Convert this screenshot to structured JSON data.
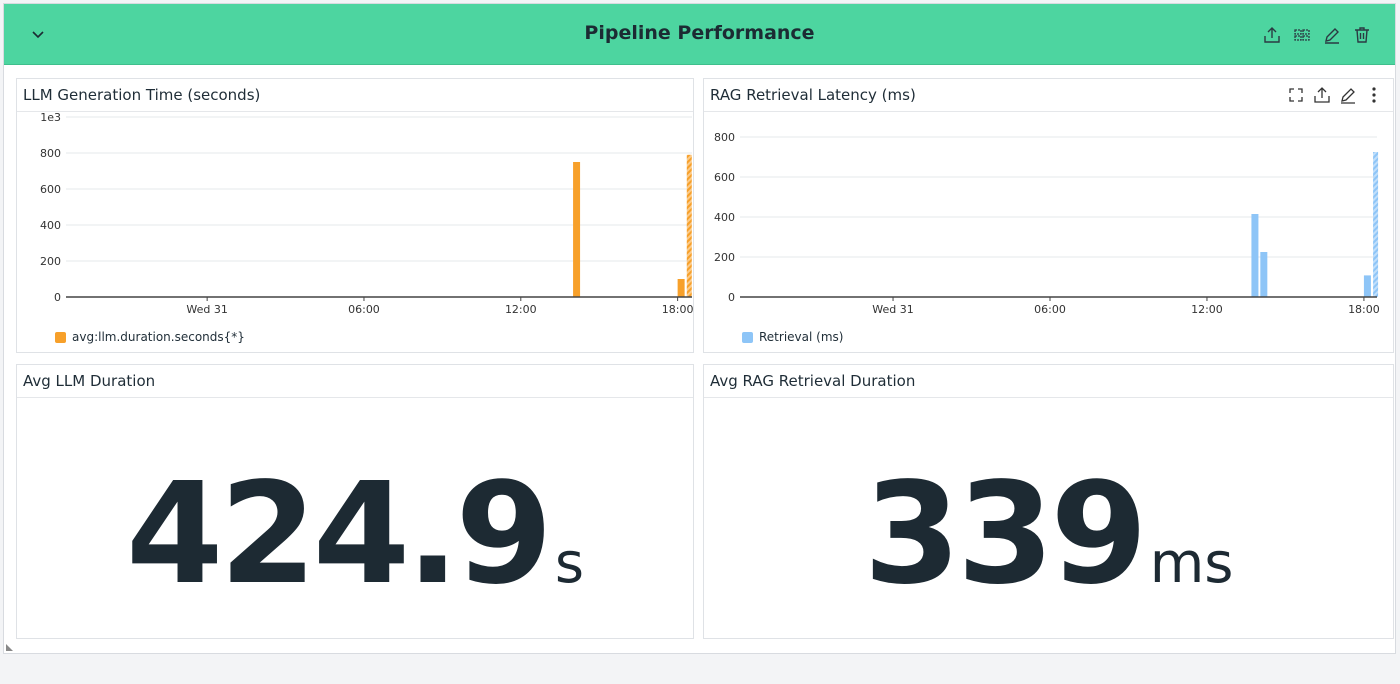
{
  "group": {
    "title": "Pipeline Performance",
    "color": "#4dd5a0"
  },
  "chart_data": [
    {
      "type": "bar",
      "title": "LLM Generation Time (seconds)",
      "ylabel": "",
      "xlabel": "",
      "y_scale_label": "1e3",
      "yticks": [
        0,
        200,
        400,
        600,
        800
      ],
      "ylim": [
        0,
        1000
      ],
      "xticks": [
        {
          "h": 0,
          "label": "Wed 31"
        },
        {
          "h": 6,
          "label": "06:00"
        },
        {
          "h": 12,
          "label": "12:00"
        },
        {
          "h": 18,
          "label": "18:00"
        }
      ],
      "xlim": [
        -5.4,
        18.55
      ],
      "color": "#f7a02a",
      "legend": "avg:llm.duration.seconds{*}",
      "legend_position": "bottom-left",
      "bars": [
        {
          "h": 14.0,
          "value": 750
        },
        {
          "h": 18.0,
          "value": 100
        },
        {
          "h": 18.35,
          "value": 790,
          "partial": true
        }
      ]
    },
    {
      "type": "bar",
      "title": "RAG Retrieval Latency (ms)",
      "ylabel": "",
      "xlabel": "",
      "yticks": [
        0,
        200,
        400,
        600,
        800
      ],
      "ylim": [
        0,
        800
      ],
      "xticks": [
        {
          "h": 0,
          "label": "Wed 31"
        },
        {
          "h": 6,
          "label": "06:00"
        },
        {
          "h": 12,
          "label": "12:00"
        },
        {
          "h": 18,
          "label": "18:00"
        }
      ],
      "xlim": [
        -5.85,
        18.5
      ],
      "color": "#8ec5f7",
      "legend": "Retrieval (ms)",
      "legend_position": "bottom-left",
      "bars": [
        {
          "h": 13.7,
          "value": 415
        },
        {
          "h": 14.04,
          "value": 225
        },
        {
          "h": 18.0,
          "value": 108
        },
        {
          "h": 18.35,
          "value": 725,
          "partial": true
        }
      ]
    }
  ],
  "stats": [
    {
      "title": "Avg LLM Duration",
      "value": "424.9",
      "unit": "s"
    },
    {
      "title": "Avg RAG Retrieval Duration",
      "value": "339",
      "unit": "ms"
    }
  ]
}
